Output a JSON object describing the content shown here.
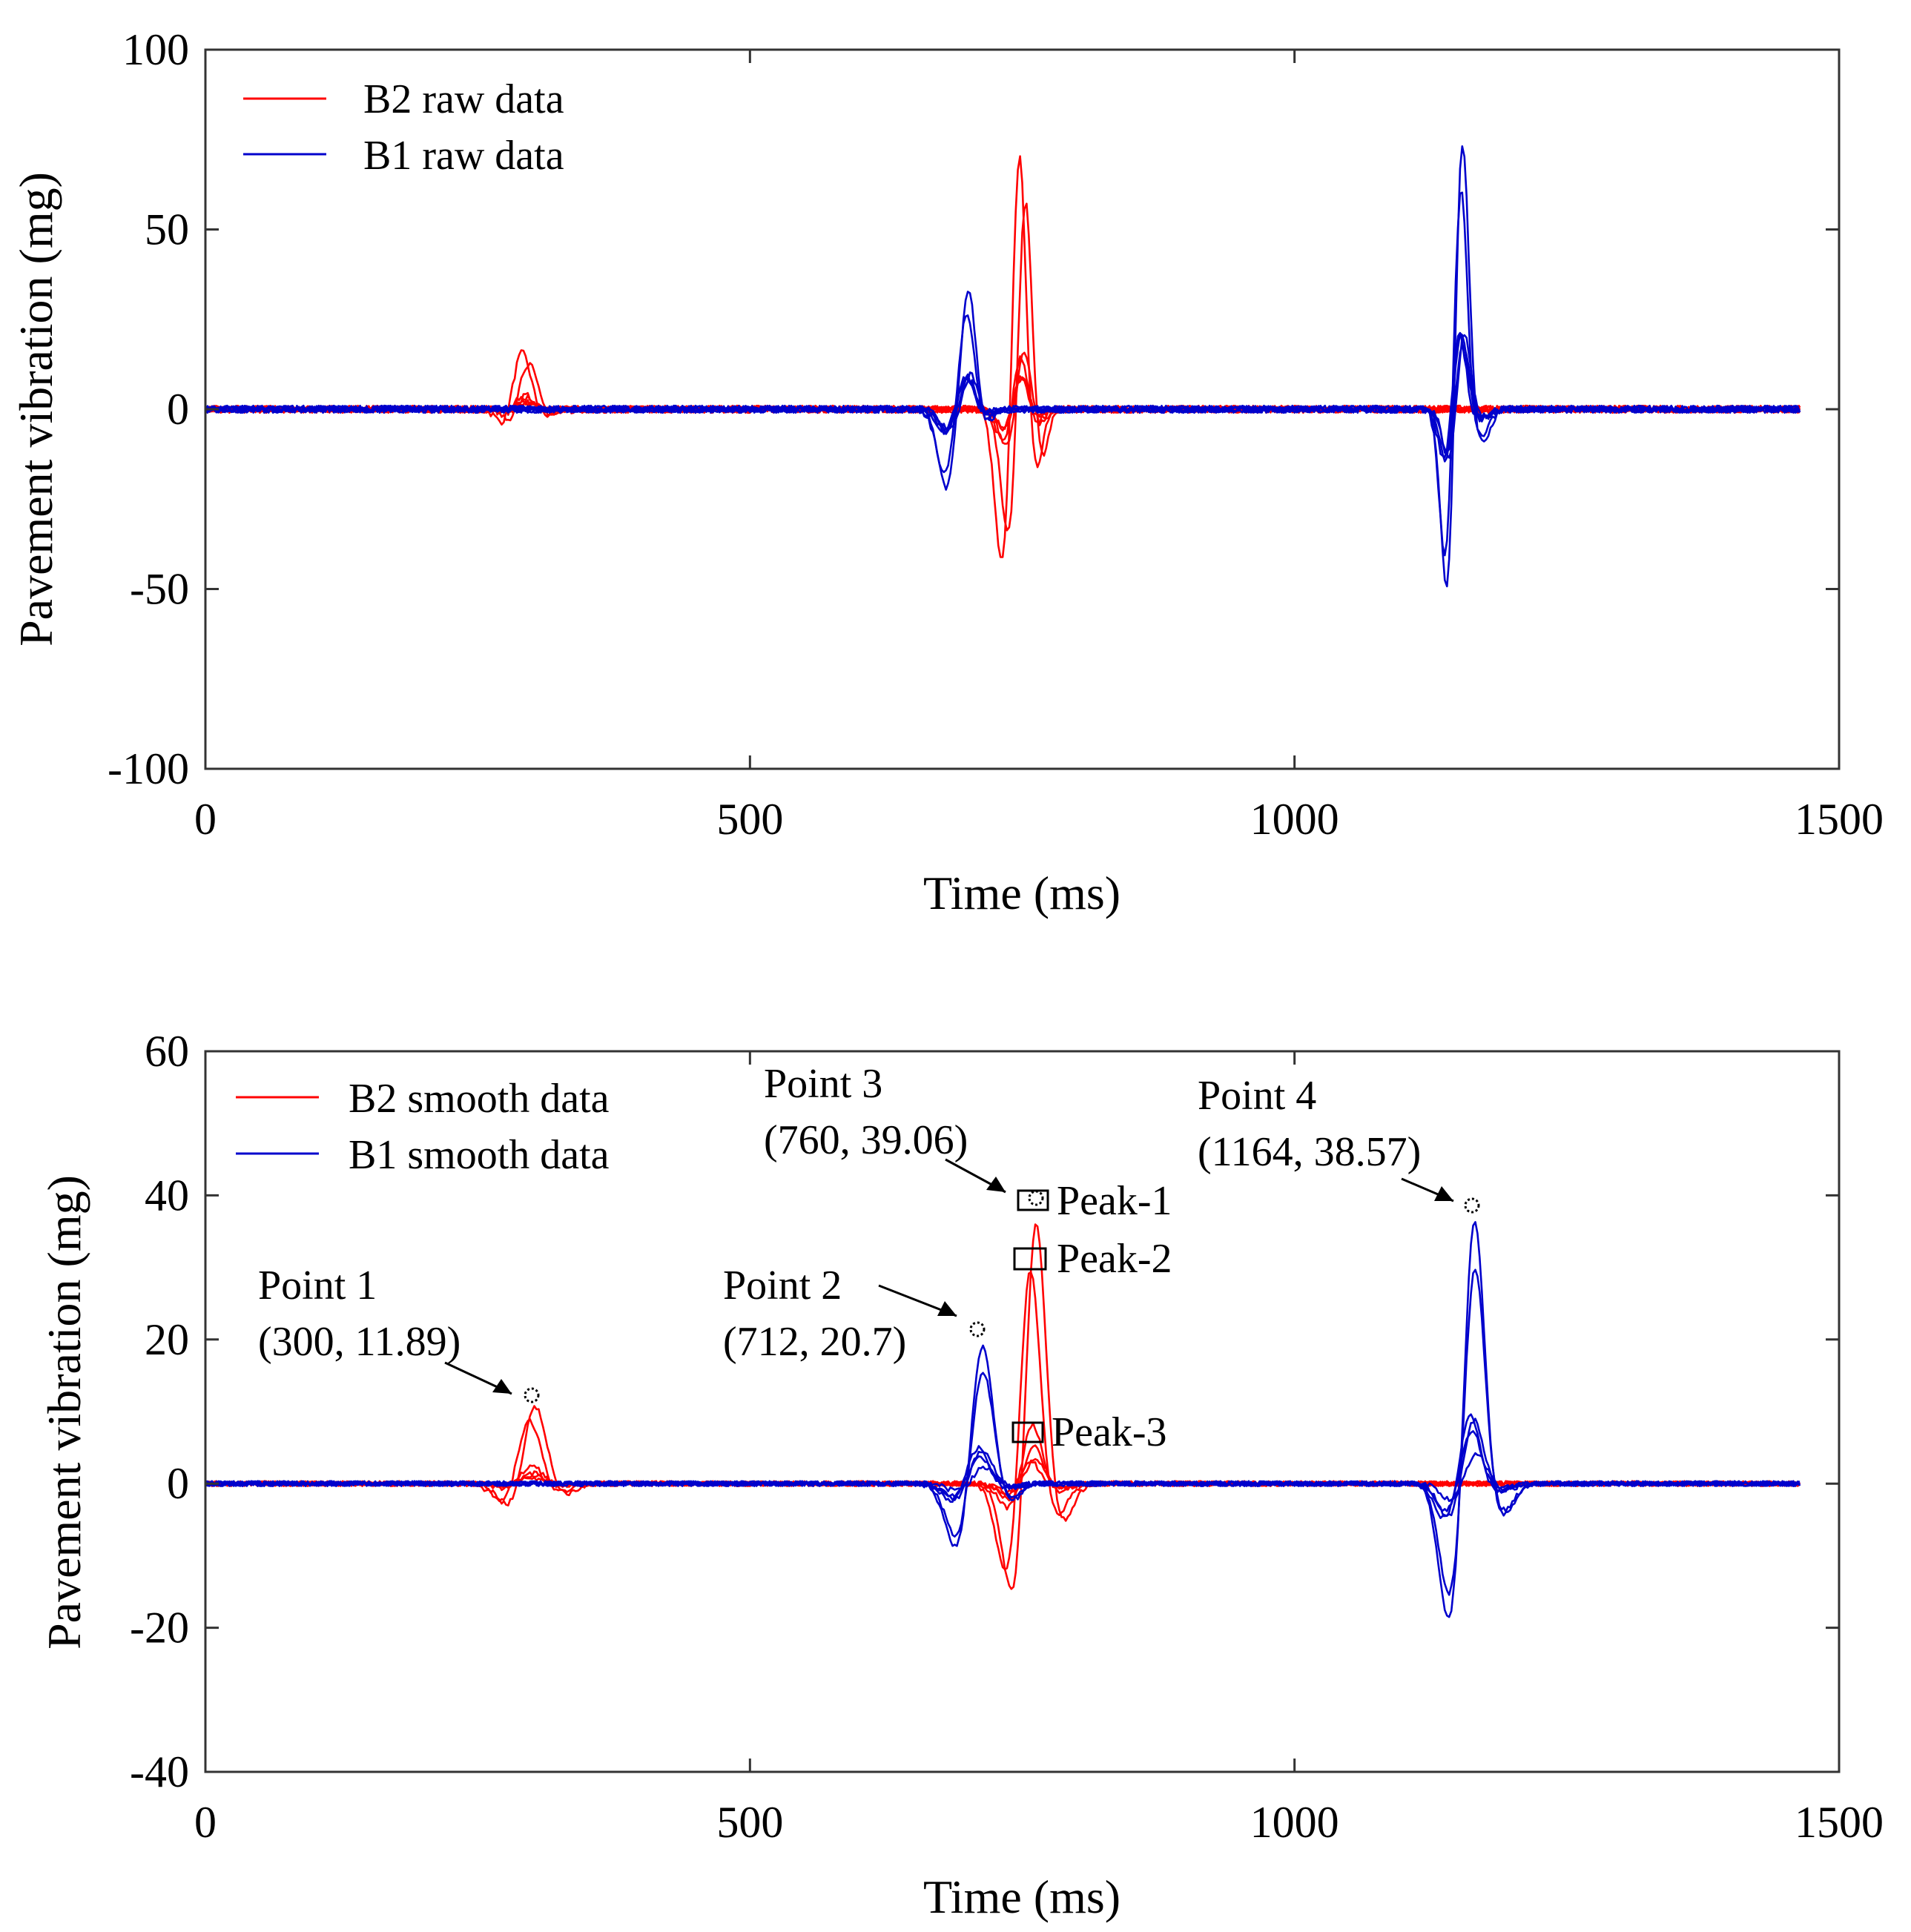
{
  "chart_data": [
    {
      "type": "line",
      "xlabel": "Time (ms)",
      "ylabel": "Pavement vibration (mg)",
      "xlim": [
        0,
        1500
      ],
      "ylim": [
        -100,
        100
      ],
      "xticks": [
        0,
        500,
        1000,
        1500
      ],
      "yticks": [
        -100,
        -50,
        0,
        50,
        100
      ],
      "grid": false,
      "legend_position": "top-left",
      "legend": [
        {
          "label": "B2 raw data",
          "color": "#ff0000"
        },
        {
          "label": "B1 raw data",
          "color": "#0000cc"
        }
      ],
      "series": [
        {
          "name": "B2 raw data",
          "color": "#ff0000",
          "curves": 6,
          "events": [
            {
              "t": 280,
              "amp": -7,
              "w": 8
            },
            {
              "t": 293,
              "amp": 18,
              "w": 9
            },
            {
              "t": 310,
              "amp": -3,
              "w": 10
            },
            {
              "t": 735,
              "amp": -45,
              "w": 7
            },
            {
              "t": 750,
              "amp": 75,
              "w": 6
            },
            {
              "t": 765,
              "amp": -18,
              "w": 6
            }
          ]
        },
        {
          "name": "B1 raw data",
          "color": "#0000cc",
          "curves": 6,
          "events": [
            {
              "t": 680,
              "amp": -22,
              "w": 8
            },
            {
              "t": 700,
              "amp": 36,
              "w": 7
            },
            {
              "t": 712,
              "amp": -6,
              "w": 8
            },
            {
              "t": 1140,
              "amp": -55,
              "w": 6
            },
            {
              "t": 1153,
              "amp": 80,
              "w": 6
            },
            {
              "t": 1170,
              "amp": -10,
              "w": 8
            }
          ]
        }
      ]
    },
    {
      "type": "line",
      "xlabel": "Time (ms)",
      "ylabel": "Pavement vibration (mg)",
      "xlim": [
        0,
        1500
      ],
      "ylim": [
        -40,
        60
      ],
      "xticks": [
        0,
        500,
        1000,
        1500
      ],
      "yticks": [
        -40,
        -20,
        0,
        20,
        40,
        60
      ],
      "grid": false,
      "legend_position": "top-left",
      "legend": [
        {
          "label": "B2 smooth data",
          "color": "#ff0000"
        },
        {
          "label": "B1 smooth data",
          "color": "#0000cc"
        }
      ],
      "series": [
        {
          "name": "B2 smooth data",
          "color": "#ff0000",
          "curves": 6,
          "events": [
            {
              "t": 280,
              "amp": -4,
              "w": 12
            },
            {
              "t": 300,
              "amp": 11.89,
              "w": 11
            },
            {
              "t": 322,
              "amp": -2,
              "w": 12
            },
            {
              "t": 740,
              "amp": -17,
              "w": 10
            },
            {
              "t": 760,
              "amp": 39.06,
              "w": 9
            },
            {
              "t": 782,
              "amp": -6,
              "w": 11
            }
          ]
        },
        {
          "name": "B1 smooth data",
          "color": "#0000cc",
          "curves": 6,
          "events": [
            {
              "t": 690,
              "amp": -10,
              "w": 11
            },
            {
              "t": 712,
              "amp": 20.7,
              "w": 10
            },
            {
              "t": 735,
              "amp": -3,
              "w": 11
            },
            {
              "t": 1142,
              "amp": -20,
              "w": 10
            },
            {
              "t": 1164,
              "amp": 38.57,
              "w": 9
            },
            {
              "t": 1188,
              "amp": -5,
              "w": 11
            }
          ]
        }
      ],
      "annotations": [
        {
          "id": "p1",
          "label": "Point 1",
          "coords": "(300, 11.89)",
          "x": 300,
          "y": 11.89
        },
        {
          "id": "p2",
          "label": "Point 2",
          "coords": "(712, 20.7)",
          "x": 712,
          "y": 20.7
        },
        {
          "id": "p3",
          "label": "Point 3",
          "coords": "(760, 39.06)",
          "x": 760,
          "y": 39.06
        },
        {
          "id": "p4",
          "label": "Point 4",
          "coords": "(1164, 38.57)",
          "x": 1164,
          "y": 38.57
        }
      ],
      "peaks": [
        {
          "label": "Peak-1",
          "x": 760,
          "y": 39
        },
        {
          "label": "Peak-2",
          "x": 757,
          "y": 31
        },
        {
          "label": "Peak-3",
          "x": 755,
          "y": 7
        }
      ]
    }
  ]
}
